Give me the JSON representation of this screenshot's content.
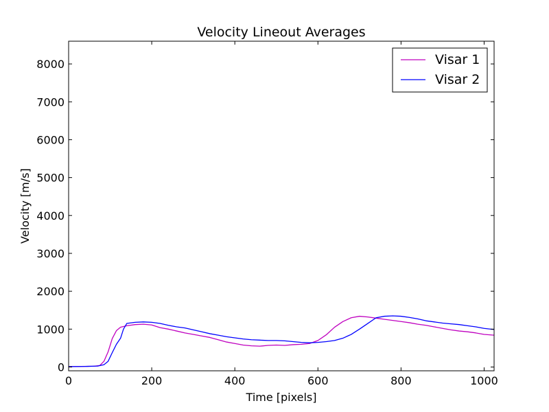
{
  "chart_data": {
    "type": "line",
    "title": "Velocity Lineout Averages",
    "xlabel": "Time [pixels]",
    "ylabel": "Velocity [m/s]",
    "xlim": [
      0,
      1024
    ],
    "ylim": [
      -100,
      8600
    ],
    "xticks": [
      0,
      200,
      400,
      600,
      800,
      1000
    ],
    "yticks": [
      0,
      1000,
      2000,
      3000,
      4000,
      5000,
      6000,
      7000,
      8000
    ],
    "grid": false,
    "legend": "top-right",
    "series": [
      {
        "name": "Visar 1",
        "color": "#bf00bf",
        "x": [
          0,
          30,
          60,
          75,
          85,
          95,
          105,
          115,
          125,
          140,
          160,
          180,
          200,
          220,
          240,
          260,
          280,
          300,
          320,
          340,
          360,
          380,
          400,
          420,
          440,
          460,
          480,
          500,
          520,
          540,
          560,
          580,
          600,
          620,
          640,
          660,
          680,
          700,
          720,
          740,
          760,
          780,
          800,
          820,
          840,
          860,
          880,
          900,
          920,
          940,
          960,
          980,
          1000,
          1024
        ],
        "y": [
          10,
          15,
          20,
          40,
          150,
          400,
          750,
          960,
          1050,
          1090,
          1120,
          1130,
          1110,
          1040,
          1000,
          950,
          900,
          860,
          820,
          780,
          720,
          660,
          620,
          580,
          560,
          550,
          570,
          580,
          570,
          590,
          600,
          620,
          700,
          850,
          1050,
          1200,
          1300,
          1340,
          1320,
          1290,
          1260,
          1230,
          1200,
          1170,
          1130,
          1100,
          1060,
          1020,
          980,
          950,
          930,
          900,
          860,
          840
        ]
      },
      {
        "name": "Visar 2",
        "color": "#0000ff",
        "x": [
          0,
          40,
          70,
          85,
          95,
          105,
          115,
          125,
          132,
          140,
          160,
          180,
          200,
          220,
          240,
          260,
          280,
          300,
          320,
          340,
          360,
          380,
          400,
          420,
          440,
          460,
          480,
          500,
          520,
          540,
          560,
          580,
          600,
          620,
          640,
          660,
          680,
          700,
          720,
          740,
          760,
          780,
          800,
          820,
          840,
          860,
          880,
          900,
          920,
          940,
          960,
          980,
          1000,
          1024
        ],
        "y": [
          10,
          15,
          25,
          60,
          150,
          380,
          600,
          760,
          1000,
          1150,
          1180,
          1190,
          1180,
          1150,
          1100,
          1060,
          1030,
          980,
          930,
          880,
          840,
          800,
          770,
          740,
          720,
          710,
          700,
          700,
          690,
          670,
          650,
          640,
          650,
          670,
          700,
          760,
          860,
          1000,
          1150,
          1300,
          1340,
          1350,
          1340,
          1310,
          1270,
          1220,
          1190,
          1160,
          1140,
          1120,
          1090,
          1060,
          1020,
          990
        ]
      }
    ]
  }
}
